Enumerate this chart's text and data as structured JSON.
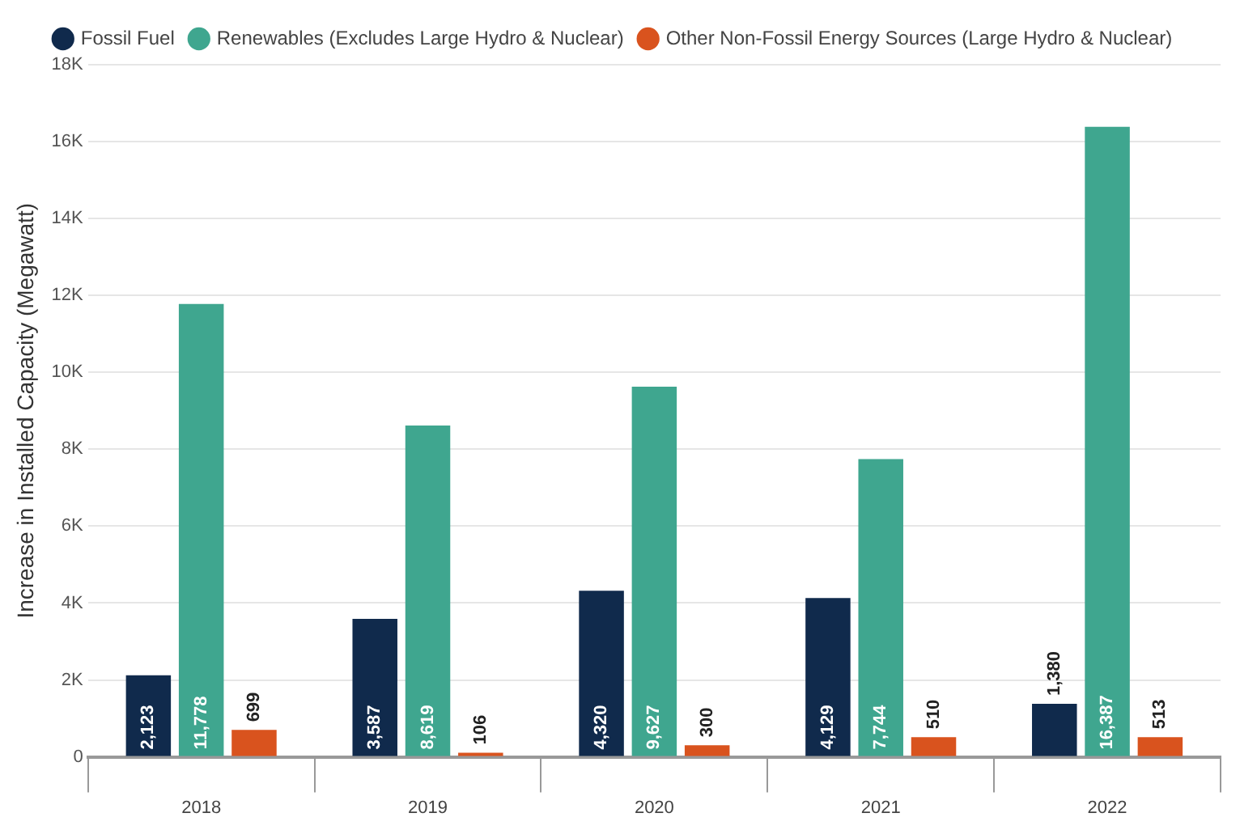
{
  "chart_data": {
    "type": "bar",
    "ylabel": "Increase in Installed Capacity (Megawatt)",
    "categories": [
      "2018",
      "2019",
      "2020",
      "2021",
      "2022"
    ],
    "series": [
      {
        "name": "Fossil Fuel",
        "color": "#102a4c",
        "values": [
          2123,
          3587,
          4320,
          4129,
          1380
        ],
        "value_labels": [
          "2,123",
          "3,587",
          "4,320",
          "4,129",
          "1,380"
        ]
      },
      {
        "name": "Renewables (Excludes Large Hydro & Nuclear)",
        "color": "#3fa68f",
        "values": [
          11778,
          8619,
          9627,
          7744,
          16387
        ],
        "value_labels": [
          "11,778",
          "8,619",
          "9,627",
          "7,744",
          "16,387"
        ]
      },
      {
        "name": "Other Non-Fossil Energy Sources (Large Hydro & Nuclear)",
        "color": "#d9531e",
        "values": [
          699,
          106,
          300,
          510,
          513
        ],
        "value_labels": [
          "699",
          "106",
          "300",
          "510",
          "513"
        ]
      }
    ],
    "ylim": [
      0,
      18000
    ],
    "yticks": [
      {
        "value": 0,
        "label": "0"
      },
      {
        "value": 2000,
        "label": "2K"
      },
      {
        "value": 4000,
        "label": "4K"
      },
      {
        "value": 6000,
        "label": "6K"
      },
      {
        "value": 8000,
        "label": "8K"
      },
      {
        "value": 10000,
        "label": "10K"
      },
      {
        "value": 12000,
        "label": "12K"
      },
      {
        "value": 14000,
        "label": "14K"
      },
      {
        "value": 16000,
        "label": "16K"
      },
      {
        "value": 18000,
        "label": "18K"
      }
    ],
    "grid": "y",
    "legend": "top"
  }
}
